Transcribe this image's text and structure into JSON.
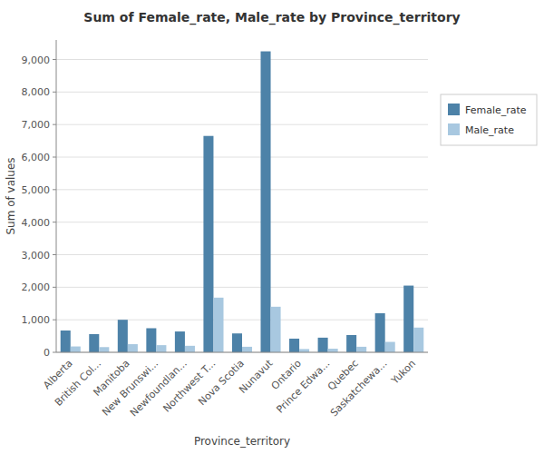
{
  "chart_data": {
    "type": "bar",
    "title": "Sum of Female_rate, Male_rate by Province_territory",
    "x_label": "Province_territory",
    "y_label": "Sum of values",
    "categories": [
      "Alberta",
      "British Col...",
      "Manitoba",
      "New Brunswi...",
      "Newfoundlan...",
      "Northwest T...",
      "Nova Scotia",
      "Nunavut",
      "Ontario",
      "Prince Edwa...",
      "Quebec",
      "Saskatchewa...",
      "Yukon"
    ],
    "series": [
      {
        "name": "Female_rate",
        "color": "#4d82a8",
        "values": [
          670,
          560,
          1000,
          740,
          640,
          6650,
          580,
          9250,
          420,
          450,
          530,
          1200,
          2050
        ]
      },
      {
        "name": "Male_rate",
        "color": "#a8c8e0",
        "values": [
          180,
          160,
          250,
          220,
          200,
          1680,
          170,
          1400,
          100,
          110,
          170,
          320,
          760
        ]
      }
    ],
    "ylim": [
      0,
      9600
    ],
    "yticks": [
      0,
      {
        "value": 1000,
        "label": "1,000"
      },
      {
        "value": 2000,
        "label": "2,000"
      },
      {
        "value": 3000,
        "label": "3,000"
      },
      {
        "value": 4000,
        "label": "4,000"
      },
      {
        "value": 5000,
        "label": "5,000"
      },
      {
        "value": 6000,
        "label": "6,000"
      },
      {
        "value": 7000,
        "label": "7,000"
      },
      {
        "value": 8000,
        "label": "8,000"
      },
      {
        "value": 9000,
        "label": "9,000"
      }
    ],
    "grid": true,
    "legend": "right"
  }
}
